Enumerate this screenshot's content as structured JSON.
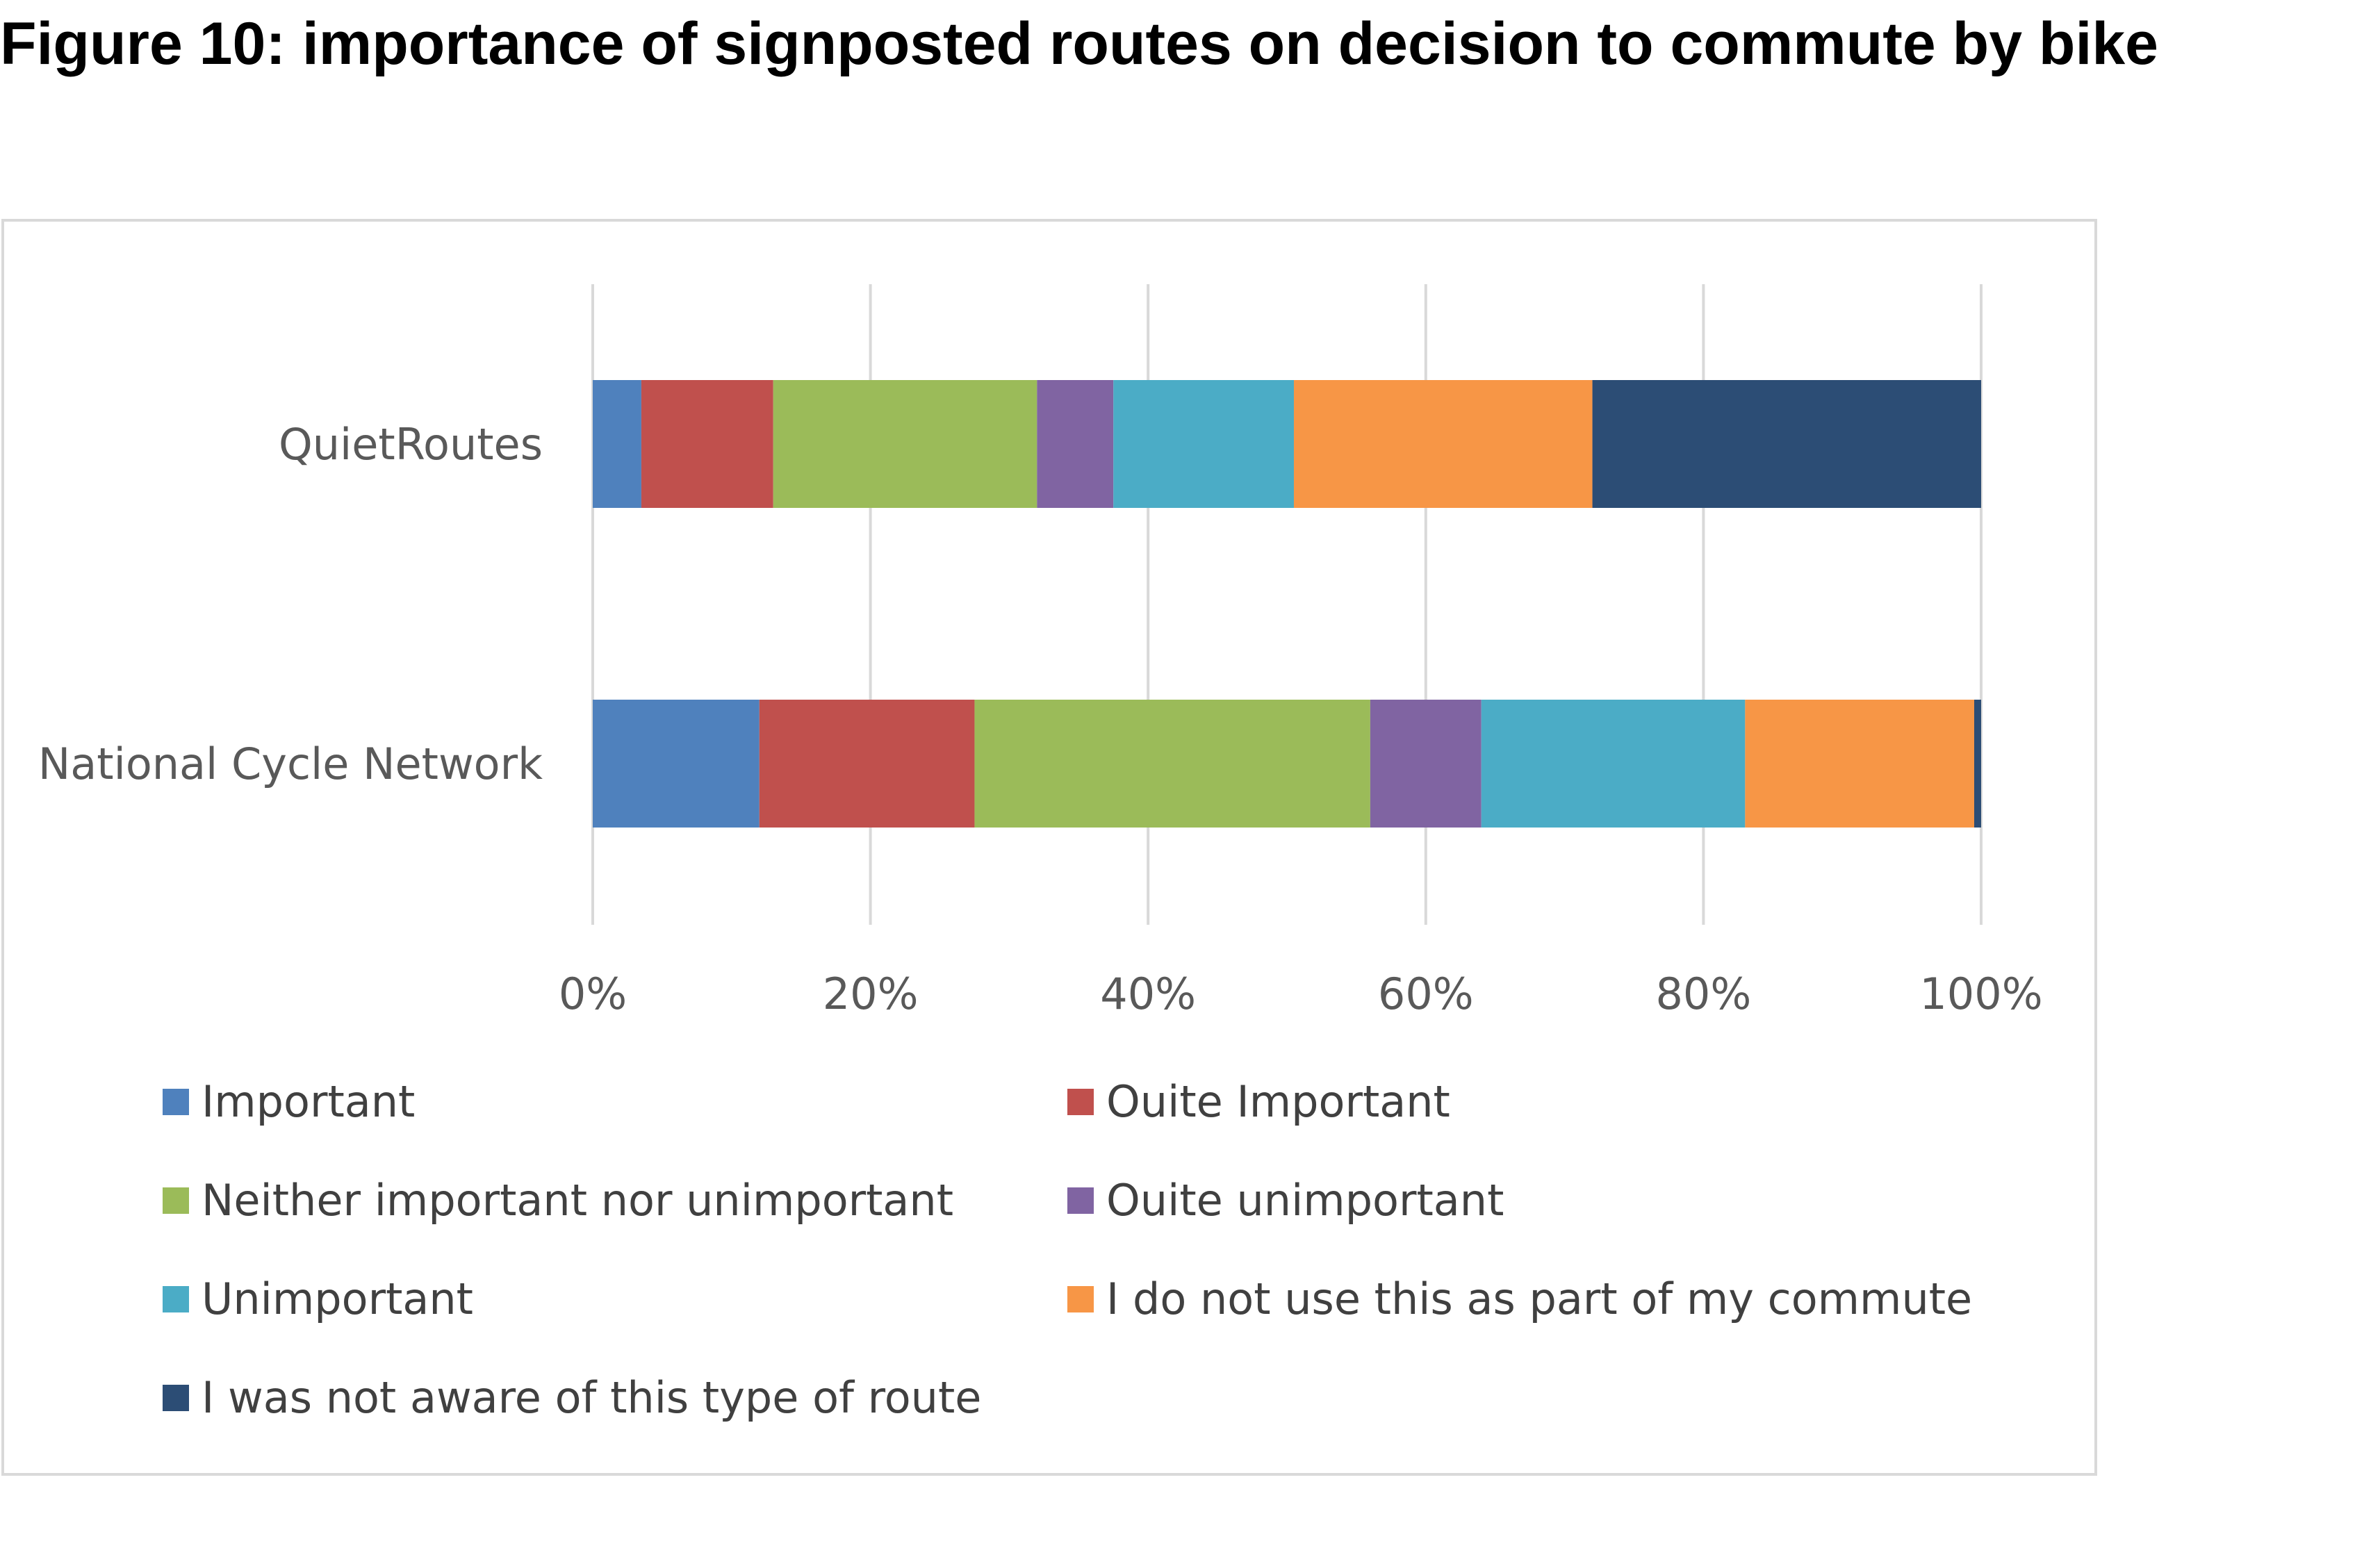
{
  "figure": {
    "title": "Figure 10: importance of signposted routes on decision to commute by bike"
  },
  "chart_data": {
    "type": "bar",
    "orientation": "horizontal",
    "stacked": "percent",
    "categories": [
      "QuietRoutes",
      "National Cycle Network"
    ],
    "series": [
      {
        "name": "Important",
        "color": "#4f81bd",
        "values": [
          3.5,
          12
        ]
      },
      {
        "name": "Ouite Important",
        "color": "#c0504d",
        "values": [
          9.5,
          15.5
        ]
      },
      {
        "name": "Neither important nor unimportant",
        "color": "#9bbb59",
        "values": [
          19,
          28.5
        ]
      },
      {
        "name": "Ouite unimportant",
        "color": "#8064a2",
        "values": [
          5.5,
          8
        ]
      },
      {
        "name": "Unimportant",
        "color": "#4bacc6",
        "values": [
          13,
          19
        ]
      },
      {
        "name": "I do not use this as part of my commute",
        "color": "#f79646",
        "values": [
          21.5,
          16.5
        ]
      },
      {
        "name": "I was not aware of this type of route",
        "color": "#2c4d75",
        "values": [
          28,
          0.5
        ]
      }
    ],
    "xlim": [
      0,
      100
    ],
    "xticks": [
      "0%",
      "20%",
      "40%",
      "60%",
      "80%",
      "100%"
    ],
    "grid": true,
    "legend_position": "bottom",
    "xlabel": "",
    "ylabel": ""
  }
}
